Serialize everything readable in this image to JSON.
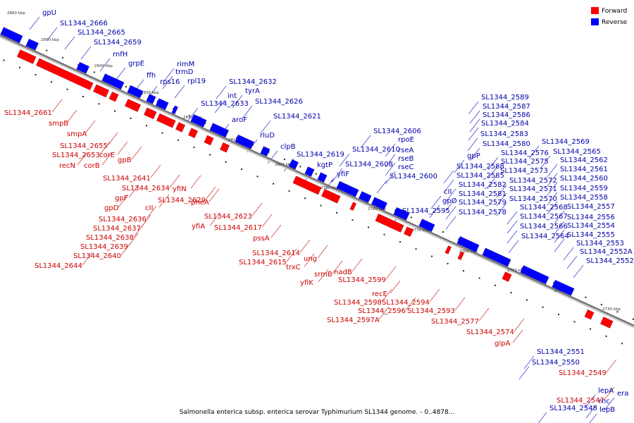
{
  "colors": {
    "forward": "#ff0000",
    "reverse": "#0000ff",
    "label_forward": "#cc0000",
    "label_reverse": "#0000aa",
    "axis": "#777777"
  },
  "legend": {
    "forward": "Forward",
    "reverse": "Reverse"
  },
  "caption": "Salmonella enterica subsp. enterica serovar Typhimurium SL1344 genome. - 0..4878...",
  "scale_ticks": [
    "2860 kbp",
    "2850 kbp",
    "2840 kbp",
    "2830 kbp",
    "2820 kbp",
    "2810 kbp",
    "2800 kbp",
    "2790 kbp",
    "2780 kbp",
    "2770 kbp",
    "2760 kbp",
    "2750 kbp",
    "2740 kbp",
    "2730 kbp"
  ],
  "reverse_genes": [
    "gpU",
    "SL1344_2666",
    "SL1344_2665",
    "SL1344_2659",
    "rnfH",
    "grpE",
    "ffh",
    "rimM",
    "trmD",
    "rps16",
    "rpl19",
    "SL1344_2632",
    "int",
    "SL1344_2633",
    "tyrA",
    "SL1344_2626",
    "aroF",
    "SL1344_2621",
    "rluD",
    "clpB",
    "SL1344_2619",
    "kgtP",
    "yfiF",
    "SL1344_2610",
    "SL1344_2608",
    "SL1344_2606",
    "rpoE",
    "rseA",
    "rseB",
    "rseC",
    "SL1344_2600",
    "SL1344_2595",
    "SL1344_2589",
    "SL1344_2587",
    "SL1344_2586",
    "SL1344_2584",
    "SL1344_2583",
    "SL1344_2580",
    "gpP",
    "SL1344_2588",
    "SL1344_2585",
    "SL1344_2582",
    "SL1344_2581",
    "SL1344_2579",
    "SL1344_2578",
    "cII",
    "gpO",
    "SL1344_2576",
    "SL1344_2575",
    "SL1344_2573",
    "SL1344_2572",
    "SL1344_2571",
    "SL1344_2570",
    "SL1344_2568",
    "SL1344_2567",
    "SL1344_2566",
    "SL1344_2564",
    "SL1344_2569",
    "SL1344_2565",
    "SL1344_2562",
    "SL1344_2561",
    "SL1344_2560",
    "SL1344_2559",
    "SL1344_2558",
    "SL1344_2557",
    "SL1344_2556",
    "SL1344_2555",
    "SL1344_2554",
    "SL1344_2553",
    "SL1344_2552A",
    "SL1344_2552",
    "SL1344_2551",
    "SL1344_2550",
    "lepA",
    "rnc",
    "era",
    "lepB",
    "SL1344_2548"
  ],
  "forward_genes": [
    "SL1344_2661",
    "smpB",
    "smpA",
    "SL1344_2655",
    "SL1344_2653",
    "recN",
    "corE",
    "corB",
    "gpB",
    "SL1344_2641",
    "SL1344_2634",
    "gpF",
    "gpD",
    "cII",
    "SL1344_2636",
    "SL1344_2637",
    "SL1344_2638",
    "SL1344_2639",
    "SL1344_2640",
    "SL1344_2644",
    "yfiN",
    "SL1344_2629",
    "pheA",
    "SL1344_2623",
    "yfiA",
    "SL1344_2617",
    "pssA",
    "SL1344_2614",
    "SL1344_2615",
    "trxC",
    "ung",
    "yfiK",
    "srmB",
    "nadB",
    "SL1344_2599",
    "recE",
    "SL1344_2598",
    "SL1344_2596",
    "SL1344_2597A",
    "SL1344_2594",
    "SL1344_2593",
    "SL1344_2577",
    "SL1344_2574",
    "gipA",
    "SL1344_2549",
    "SL1344_2547"
  ]
}
